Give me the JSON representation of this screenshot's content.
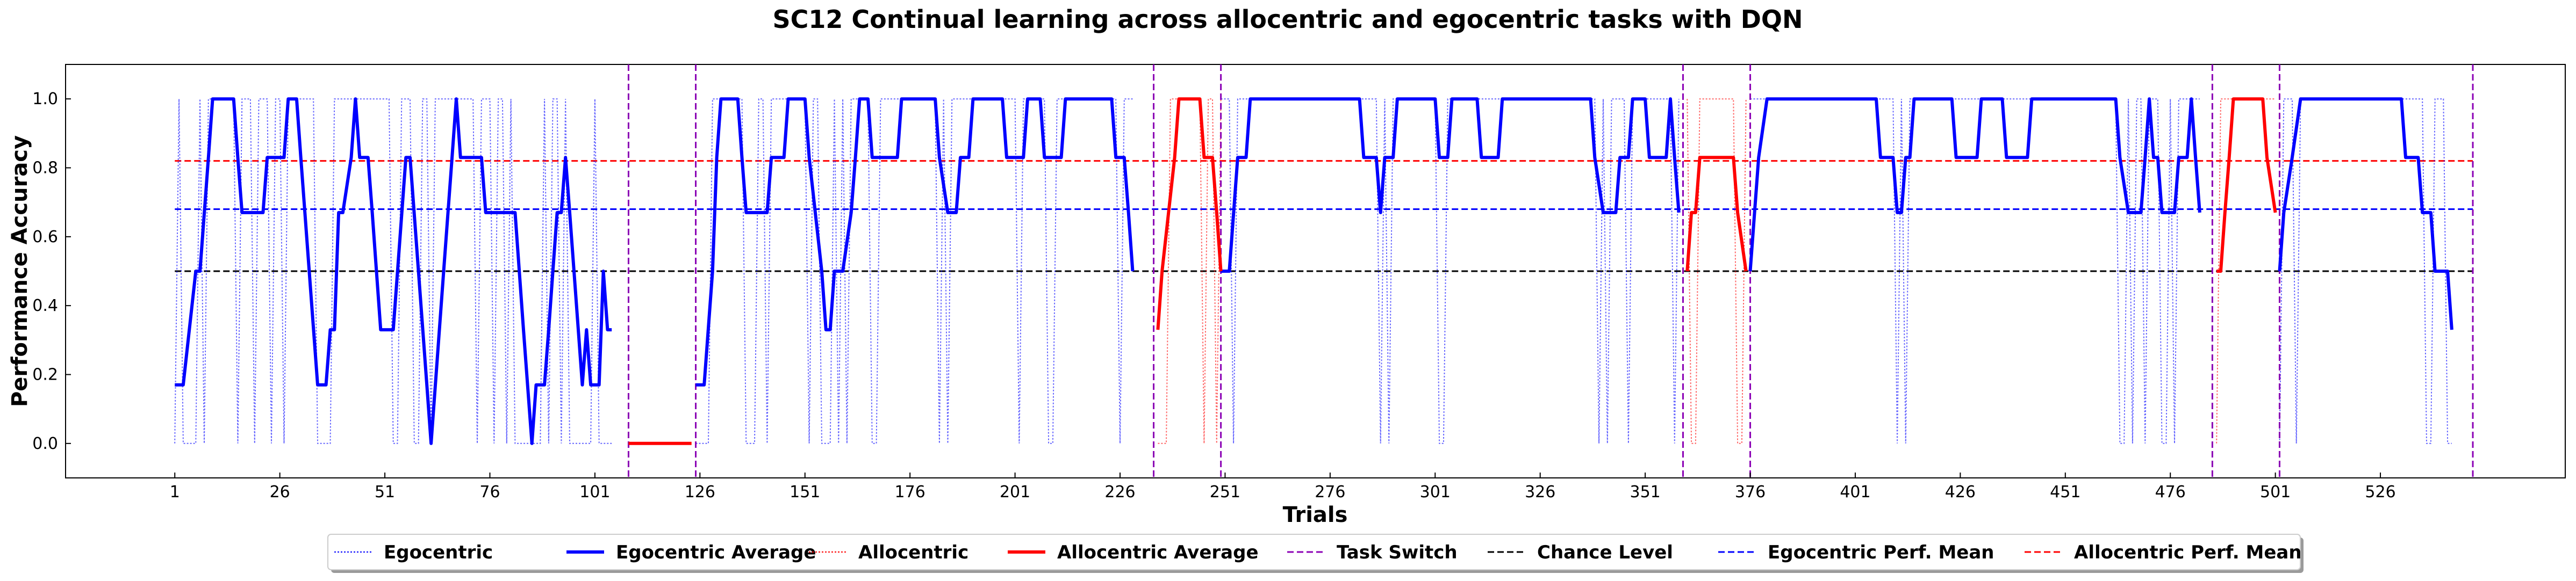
{
  "chart_data": {
    "type": "line",
    "title": "SC12 Continual learning across allocentric and egocentric tasks with DQN",
    "xlabel": "Trials",
    "ylabel": "Performance Accuracy",
    "xlim": [
      -25,
      570
    ],
    "ylim": [
      -0.1,
      1.1
    ],
    "x_ticks": [
      1,
      26,
      51,
      76,
      101,
      126,
      151,
      176,
      201,
      226,
      251,
      276,
      301,
      326,
      351,
      376,
      401,
      426,
      451,
      476,
      501,
      526
    ],
    "y_ticks": [
      0.0,
      0.2,
      0.4,
      0.6,
      0.8,
      1.0
    ],
    "y_tick_labels": [
      "0.0",
      "0.2",
      "0.4",
      "0.6",
      "0.8",
      "1.0"
    ],
    "grid": false,
    "legend_position": "bottom-center",
    "task_switches": [
      109,
      125,
      234,
      250,
      360,
      376,
      486,
      502,
      548
    ],
    "reference_lines": [
      {
        "name": "Chance Level",
        "y": 0.5,
        "x_range": [
          1,
          548
        ],
        "color": "#000000"
      },
      {
        "name": "Egocentric Perf. Mean",
        "y": 0.68,
        "x_range": [
          1,
          548
        ],
        "color": "#0000ff"
      },
      {
        "name": "Allocentric Perf. Mean",
        "y": 0.82,
        "x_range": [
          1,
          548
        ],
        "color": "#ff0000"
      }
    ],
    "series": [
      {
        "name": "Egocentric Average",
        "color": "#0000ff",
        "segments": [
          [
            [
              1,
              0.17
            ],
            [
              3,
              0.17
            ],
            [
              6,
              0.5
            ],
            [
              7,
              0.5
            ],
            [
              9,
              0.83
            ],
            [
              10,
              1.0
            ],
            [
              15,
              1.0
            ],
            [
              16,
              0.83
            ],
            [
              17,
              0.67
            ],
            [
              22,
              0.67
            ],
            [
              23,
              0.83
            ],
            [
              27,
              0.83
            ],
            [
              28,
              1.0
            ],
            [
              30,
              1.0
            ],
            [
              31,
              0.83
            ],
            [
              35,
              0.17
            ],
            [
              37,
              0.17
            ],
            [
              38,
              0.33
            ],
            [
              39,
              0.33
            ],
            [
              40,
              0.67
            ],
            [
              41,
              0.67
            ],
            [
              43,
              0.83
            ],
            [
              44,
              1.0
            ],
            [
              45,
              0.83
            ],
            [
              47,
              0.83
            ],
            [
              48,
              0.67
            ],
            [
              50,
              0.33
            ],
            [
              53,
              0.33
            ],
            [
              56,
              0.83
            ],
            [
              57,
              0.83
            ],
            [
              59,
              0.5
            ],
            [
              61,
              0.17
            ],
            [
              62,
              0.0
            ],
            [
              65,
              0.5
            ],
            [
              67,
              0.83
            ],
            [
              68,
              1.0
            ],
            [
              69,
              0.83
            ],
            [
              74,
              0.83
            ],
            [
              75,
              0.67
            ],
            [
              82,
              0.67
            ],
            [
              84,
              0.33
            ],
            [
              86,
              0.0
            ],
            [
              87,
              0.17
            ],
            [
              89,
              0.17
            ],
            [
              90,
              0.33
            ],
            [
              91,
              0.5
            ],
            [
              92,
              0.67
            ],
            [
              93,
              0.67
            ],
            [
              94,
              0.83
            ],
            [
              95,
              0.67
            ],
            [
              98,
              0.17
            ],
            [
              99,
              0.33
            ],
            [
              100,
              0.17
            ],
            [
              102,
              0.17
            ],
            [
              103,
              0.5
            ],
            [
              104,
              0.33
            ],
            [
              105,
              0.33
            ]
          ],
          [
            [
              125,
              0.17
            ],
            [
              127,
              0.17
            ],
            [
              129,
              0.5
            ],
            [
              130,
              0.83
            ],
            [
              131,
              1.0
            ],
            [
              135,
              1.0
            ],
            [
              136,
              0.83
            ],
            [
              137,
              0.67
            ],
            [
              142,
              0.67
            ],
            [
              143,
              0.83
            ],
            [
              146,
              0.83
            ],
            [
              147,
              1.0
            ],
            [
              151,
              1.0
            ],
            [
              152,
              0.83
            ],
            [
              155,
              0.5
            ],
            [
              156,
              0.33
            ],
            [
              157,
              0.33
            ],
            [
              158,
              0.5
            ],
            [
              160,
              0.5
            ],
            [
              162,
              0.67
            ],
            [
              163,
              0.83
            ],
            [
              164,
              1.0
            ],
            [
              166,
              1.0
            ],
            [
              167,
              0.83
            ],
            [
              173,
              0.83
            ],
            [
              174,
              1.0
            ],
            [
              182,
              1.0
            ],
            [
              183,
              0.83
            ],
            [
              185,
              0.67
            ],
            [
              187,
              0.67
            ],
            [
              188,
              0.83
            ],
            [
              190,
              0.83
            ],
            [
              191,
              1.0
            ],
            [
              198,
              1.0
            ],
            [
              199,
              0.83
            ],
            [
              203,
              0.83
            ],
            [
              204,
              1.0
            ],
            [
              207,
              1.0
            ],
            [
              208,
              0.83
            ],
            [
              212,
              0.83
            ],
            [
              213,
              1.0
            ],
            [
              224,
              1.0
            ],
            [
              225,
              0.83
            ],
            [
              227,
              0.83
            ],
            [
              228,
              0.67
            ],
            [
              229,
              0.5
            ]
          ],
          [
            [
              250,
              0.5
            ],
            [
              252,
              0.5
            ],
            [
              254,
              0.83
            ],
            [
              256,
              0.83
            ],
            [
              257,
              1.0
            ],
            [
              283,
              1.0
            ],
            [
              284,
              0.83
            ],
            [
              287,
              0.83
            ],
            [
              288,
              0.67
            ],
            [
              289,
              0.83
            ],
            [
              291,
              0.83
            ],
            [
              292,
              1.0
            ],
            [
              301,
              1.0
            ],
            [
              302,
              0.83
            ],
            [
              304,
              0.83
            ],
            [
              305,
              1.0
            ],
            [
              311,
              1.0
            ],
            [
              312,
              0.83
            ],
            [
              316,
              0.83
            ],
            [
              317,
              1.0
            ],
            [
              338,
              1.0
            ],
            [
              339,
              0.83
            ],
            [
              341,
              0.67
            ],
            [
              344,
              0.67
            ],
            [
              345,
              0.83
            ],
            [
              347,
              0.83
            ],
            [
              348,
              1.0
            ],
            [
              351,
              1.0
            ],
            [
              352,
              0.83
            ],
            [
              356,
              0.83
            ],
            [
              357,
              1.0
            ],
            [
              358,
              0.83
            ],
            [
              359,
              0.67
            ]
          ],
          [
            [
              376,
              0.5
            ],
            [
              378,
              0.83
            ],
            [
              380,
              1.0
            ],
            [
              406,
              1.0
            ],
            [
              407,
              0.83
            ],
            [
              410,
              0.83
            ],
            [
              411,
              0.67
            ],
            [
              412,
              0.67
            ],
            [
              413,
              0.83
            ],
            [
              414,
              0.83
            ],
            [
              415,
              1.0
            ],
            [
              424,
              1.0
            ],
            [
              425,
              0.83
            ],
            [
              430,
              0.83
            ],
            [
              431,
              1.0
            ],
            [
              436,
              1.0
            ],
            [
              437,
              0.83
            ],
            [
              442,
              0.83
            ],
            [
              443,
              1.0
            ],
            [
              463,
              1.0
            ],
            [
              464,
              0.83
            ],
            [
              466,
              0.67
            ],
            [
              469,
              0.67
            ],
            [
              470,
              0.83
            ],
            [
              471,
              1.0
            ],
            [
              472,
              0.83
            ],
            [
              473,
              0.83
            ],
            [
              474,
              0.67
            ],
            [
              477,
              0.67
            ],
            [
              478,
              0.83
            ],
            [
              480,
              0.83
            ],
            [
              481,
              1.0
            ],
            [
              482,
              0.83
            ],
            [
              483,
              0.67
            ]
          ],
          [
            [
              502,
              0.5
            ],
            [
              503,
              0.67
            ],
            [
              505,
              0.83
            ],
            [
              507,
              1.0
            ],
            [
              531,
              1.0
            ],
            [
              532,
              0.83
            ],
            [
              535,
              0.83
            ],
            [
              536,
              0.67
            ],
            [
              538,
              0.67
            ],
            [
              539,
              0.5
            ],
            [
              542,
              0.5
            ],
            [
              543,
              0.33
            ]
          ]
        ]
      },
      {
        "name": "Allocentric Average",
        "color": "#ff0000",
        "segments": [
          [
            [
              109,
              0.0
            ],
            [
              124,
              0.0
            ]
          ],
          [
            [
              235,
              0.33
            ],
            [
              236,
              0.5
            ],
            [
              239,
              0.83
            ],
            [
              240,
              1.0
            ],
            [
              245,
              1.0
            ],
            [
              246,
              0.83
            ],
            [
              248,
              0.83
            ],
            [
              249,
              0.67
            ],
            [
              250,
              0.5
            ]
          ],
          [
            [
              361,
              0.5
            ],
            [
              362,
              0.67
            ],
            [
              363,
              0.67
            ],
            [
              364,
              0.83
            ],
            [
              372,
              0.83
            ],
            [
              373,
              0.67
            ],
            [
              375,
              0.5
            ]
          ],
          [
            [
              487,
              0.5
            ],
            [
              488,
              0.5
            ],
            [
              489,
              0.67
            ],
            [
              490,
              0.83
            ],
            [
              491,
              1.0
            ],
            [
              498,
              1.0
            ],
            [
              499,
              0.83
            ],
            [
              501,
              0.67
            ]
          ]
        ]
      }
    ]
  },
  "legend": {
    "items": [
      {
        "label": "Egocentric",
        "color": "#0000ff",
        "style": "dotted"
      },
      {
        "label": "Egocentric Average",
        "color": "#0000ff",
        "style": "solid"
      },
      {
        "label": "Allocentric",
        "color": "#ff0000",
        "style": "dotted"
      },
      {
        "label": "Allocentric Average",
        "color": "#ff0000",
        "style": "solid"
      },
      {
        "label": "Task Switch",
        "color": "#8b00b5",
        "style": "dashed"
      },
      {
        "label": "Chance Level",
        "color": "#000000",
        "style": "dashed"
      },
      {
        "label": "Egocentric Perf. Mean",
        "color": "#0000ff",
        "style": "dashed"
      },
      {
        "label": "Allocentric Perf. Mean",
        "color": "#ff0000",
        "style": "dashed"
      }
    ]
  }
}
